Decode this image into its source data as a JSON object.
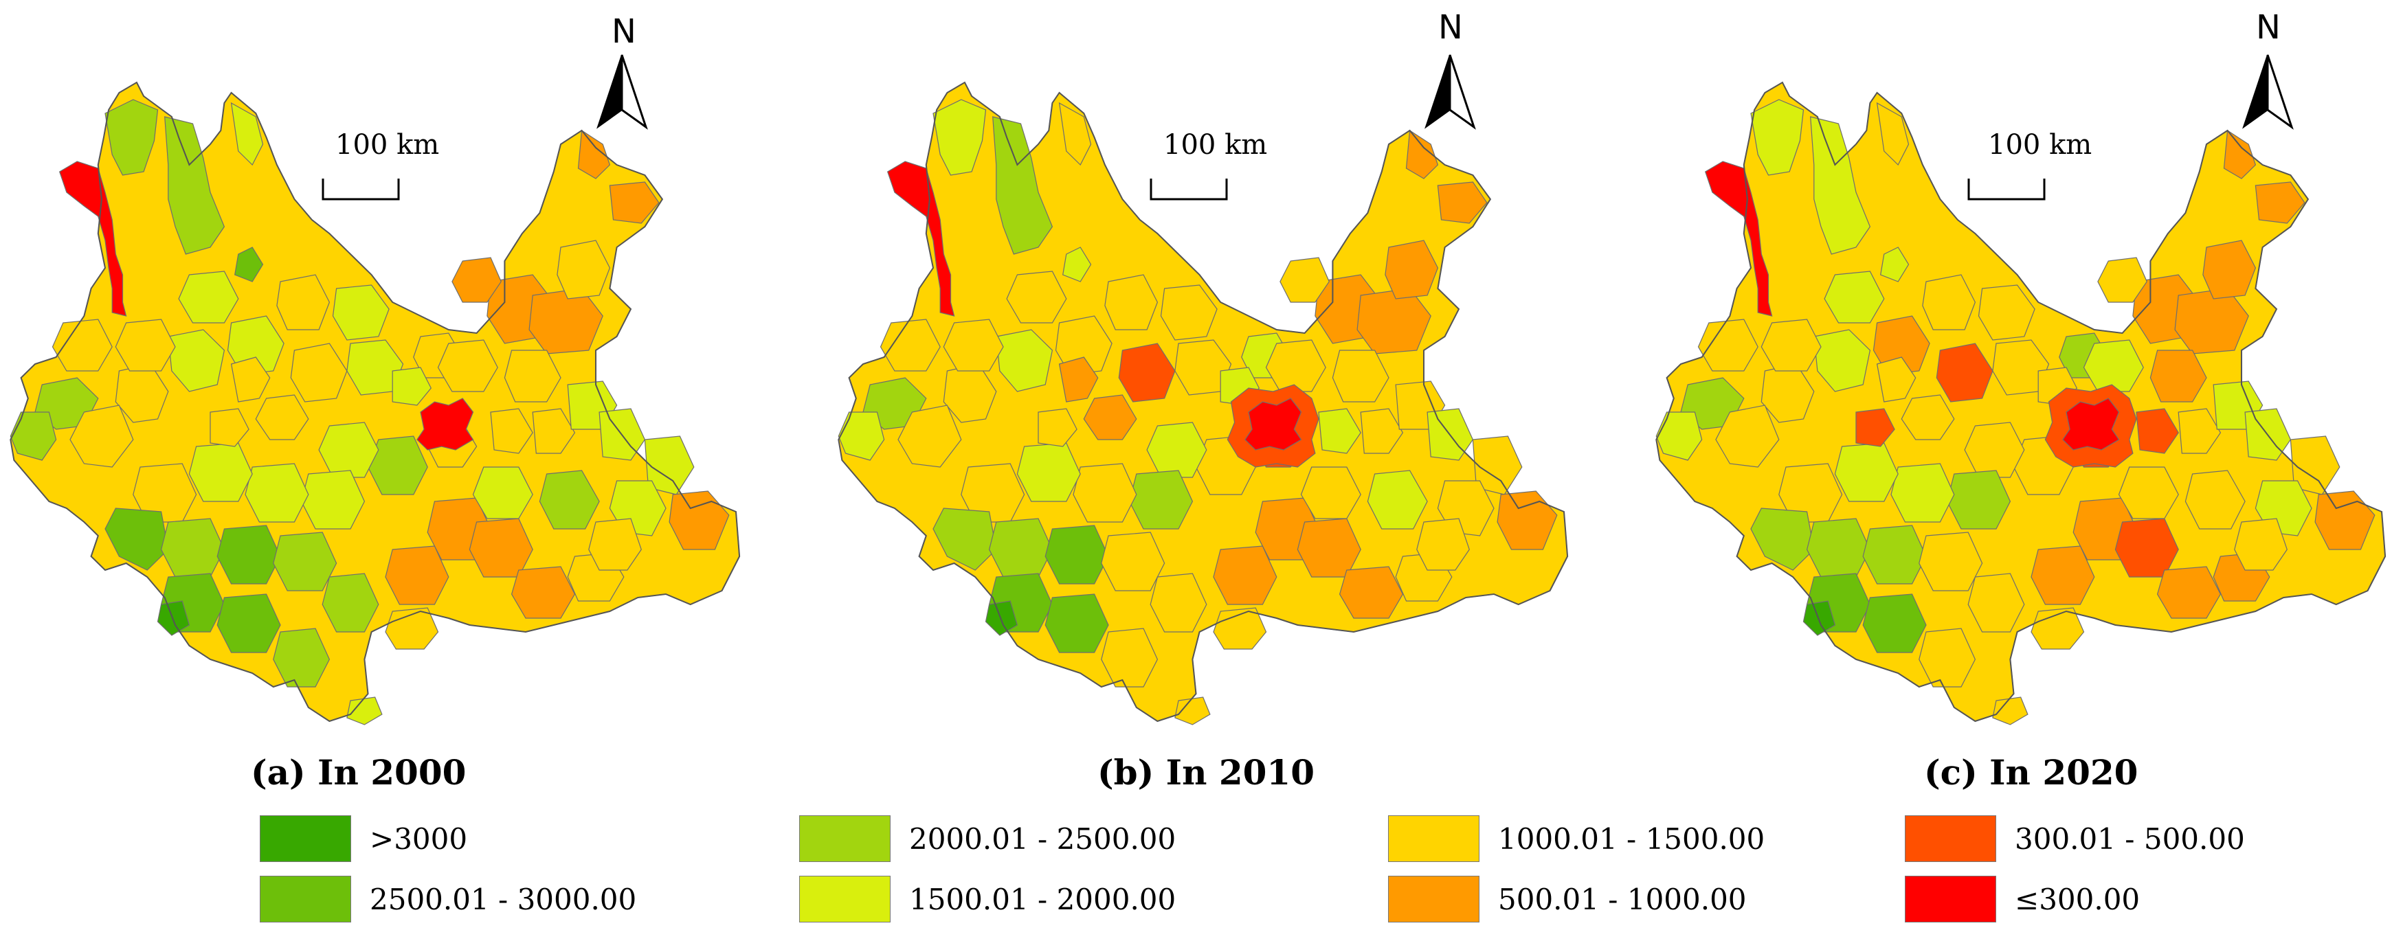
{
  "panels": [
    {
      "id": "a",
      "caption": "(a) In 2000",
      "scale_label": "100 km",
      "north_label": "N"
    },
    {
      "id": "b",
      "caption": "(b) In 2010",
      "scale_label": "100 km",
      "north_label": "N"
    },
    {
      "id": "c",
      "caption": "(c) In 2020",
      "scale_label": "100 km",
      "north_label": "N"
    }
  ],
  "legend": {
    "items": [
      {
        "label": ">3000",
        "color": "#38a800"
      },
      {
        "label": "2500.01 - 3000.00",
        "color": "#6dbf0a"
      },
      {
        "label": "2000.01 - 2500.00",
        "color": "#a2d50f"
      },
      {
        "label": "1500.01 - 2000.00",
        "color": "#d9ef0d"
      },
      {
        "label": "1000.01 - 1500.00",
        "color": "#ffd400"
      },
      {
        "label": "500.01 - 1000.00",
        "color": "#ff9a00"
      },
      {
        "label": "300.01 - 500.00",
        "color": "#ff5000"
      },
      {
        "label": "≤300.00",
        "color": "#ff0000"
      }
    ]
  }
}
